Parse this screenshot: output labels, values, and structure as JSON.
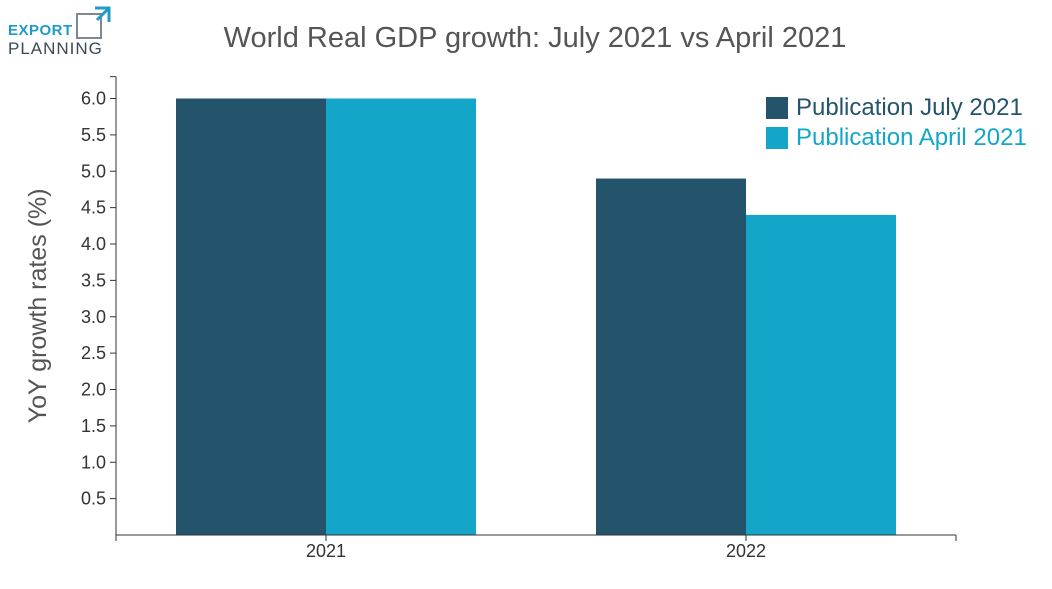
{
  "logo": {
    "line1": "EXPORT",
    "line2": "PLANNING"
  },
  "chart_data": {
    "type": "bar",
    "title": "World Real GDP growth: July 2021 vs April 2021",
    "ylabel": "YoY growth rates (%)",
    "xlabel": "",
    "categories": [
      "2021",
      "2022"
    ],
    "series": [
      {
        "name": "Publication July 2021",
        "values": [
          6.0,
          4.9
        ],
        "color": "#24546b"
      },
      {
        "name": "Publication April 2021",
        "values": [
          6.0,
          4.4
        ],
        "color": "#13a6c9"
      }
    ],
    "ylim": [
      0,
      6.3
    ],
    "yticks": [
      "0.5",
      "1.0",
      "1.5",
      "2.0",
      "2.5",
      "3.0",
      "3.5",
      "4.0",
      "4.5",
      "5.0",
      "5.5",
      "6.0"
    ],
    "grid": false,
    "legend_position": "top-right"
  }
}
